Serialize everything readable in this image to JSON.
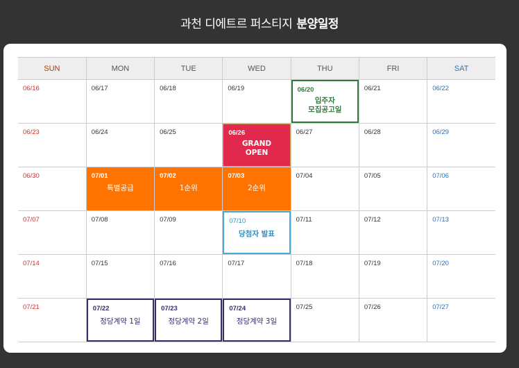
{
  "header": {
    "title_light": "과천 디에트르 퍼스티지",
    "title_bold": "분양일정"
  },
  "weekdays": [
    "SUN",
    "MON",
    "TUE",
    "WED",
    "THU",
    "FRI",
    "SAT"
  ],
  "weeks": [
    [
      {
        "date": "06/16"
      },
      {
        "date": "06/17"
      },
      {
        "date": "06/18"
      },
      {
        "date": "06/19"
      },
      {
        "date": "06/20",
        "event": "입주자 모집공고일",
        "style": "green"
      },
      {
        "date": "06/21"
      },
      {
        "date": "06/22"
      }
    ],
    [
      {
        "date": "06/23"
      },
      {
        "date": "06/24"
      },
      {
        "date": "06/25"
      },
      {
        "date": "06/26",
        "event": "GRAND OPEN",
        "style": "red"
      },
      {
        "date": "06/27"
      },
      {
        "date": "06/28"
      },
      {
        "date": "06/29"
      }
    ],
    [
      {
        "date": "06/30"
      },
      {
        "date": "07/01",
        "event": "특별공급",
        "style": "orange"
      },
      {
        "date": "07/02",
        "event": "1순위",
        "style": "orange"
      },
      {
        "date": "07/03",
        "event": "2순위",
        "style": "orange"
      },
      {
        "date": "07/04"
      },
      {
        "date": "07/05"
      },
      {
        "date": "07/06"
      }
    ],
    [
      {
        "date": "07/07"
      },
      {
        "date": "07/08"
      },
      {
        "date": "07/09"
      },
      {
        "date": "07/10",
        "event": "당첨자 발표",
        "style": "blue"
      },
      {
        "date": "07/11"
      },
      {
        "date": "07/12"
      },
      {
        "date": "07/13"
      }
    ],
    [
      {
        "date": "07/14"
      },
      {
        "date": "07/15"
      },
      {
        "date": "07/16"
      },
      {
        "date": "07/17"
      },
      {
        "date": "07/18"
      },
      {
        "date": "07/19"
      },
      {
        "date": "07/20"
      }
    ],
    [
      {
        "date": "07/21"
      },
      {
        "date": "07/22",
        "event": "정당계약 1일",
        "style": "purple"
      },
      {
        "date": "07/23",
        "event": "정당계약 2일",
        "style": "purple"
      },
      {
        "date": "07/24",
        "event": "정당계약 3일",
        "style": "purple"
      },
      {
        "date": "07/25"
      },
      {
        "date": "07/26"
      },
      {
        "date": "07/27"
      }
    ]
  ],
  "colors": {
    "sunday": "#d23030",
    "saturday": "#2f6fb3",
    "green": "#2f7a3a",
    "red": "#e0294c",
    "orange": "#ff7300",
    "blue": "#49a9d6",
    "purple": "#3d2a6b"
  }
}
